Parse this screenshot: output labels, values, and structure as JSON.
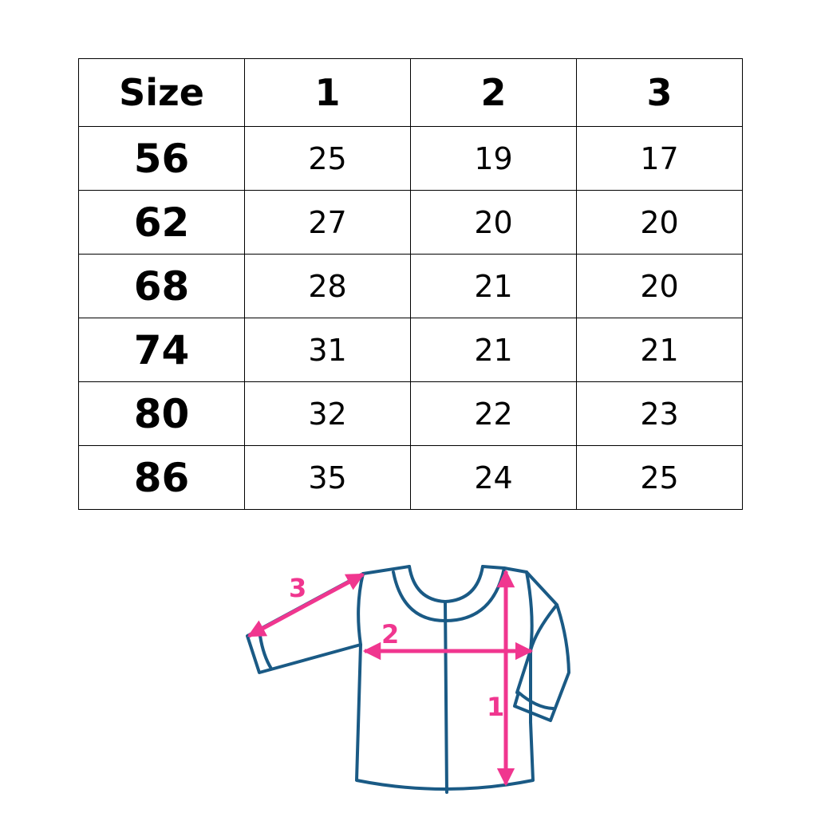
{
  "table": {
    "headers": [
      "Size",
      "1",
      "2",
      "3"
    ],
    "rows": [
      [
        "56",
        "25",
        "19",
        "17"
      ],
      [
        "62",
        "27",
        "20",
        "20"
      ],
      [
        "68",
        "28",
        "21",
        "20"
      ],
      [
        "74",
        "31",
        "21",
        "21"
      ],
      [
        "80",
        "32",
        "22",
        "23"
      ],
      [
        "86",
        "35",
        "24",
        "25"
      ]
    ]
  },
  "diagram": {
    "labels": {
      "length": "1",
      "chest": "2",
      "sleeve": "3"
    },
    "colors": {
      "outline": "#1a5a85",
      "arrow": "#f0368f"
    }
  }
}
